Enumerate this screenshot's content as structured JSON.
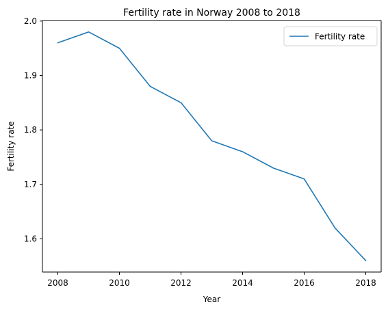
{
  "chart_data": {
    "type": "line",
    "title": "Fertility rate in Norway 2008 to 2018",
    "xlabel": "Year",
    "ylabel": "Fertility rate",
    "x": [
      2008,
      2009,
      2010,
      2011,
      2012,
      2013,
      2014,
      2015,
      2016,
      2017,
      2018
    ],
    "series": [
      {
        "name": "Fertility rate",
        "color": "#1f77b4",
        "values": [
          1.96,
          1.98,
          1.95,
          1.88,
          1.85,
          1.78,
          1.76,
          1.73,
          1.71,
          1.62,
          1.56
        ]
      }
    ],
    "xlim": [
      2007.5,
      2018.5
    ],
    "ylim": [
      1.539,
      2.001
    ],
    "xticks": [
      2008,
      2010,
      2012,
      2014,
      2016,
      2018
    ],
    "xtick_labels": [
      "2008",
      "2010",
      "2012",
      "2014",
      "2016",
      "2018"
    ],
    "yticks": [
      1.6,
      1.7,
      1.8,
      1.9,
      2.0
    ],
    "ytick_labels": [
      "1.6",
      "1.7",
      "1.8",
      "1.9",
      "2.0"
    ],
    "grid": false,
    "legend_position": "top-right"
  }
}
